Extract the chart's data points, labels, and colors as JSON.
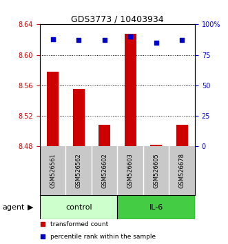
{
  "title": "GDS3773 / 10403934",
  "samples": [
    "GSM526561",
    "GSM526562",
    "GSM526602",
    "GSM526603",
    "GSM526605",
    "GSM526678"
  ],
  "bar_values": [
    8.578,
    8.555,
    8.508,
    8.628,
    8.482,
    8.508
  ],
  "percentile_values": [
    88,
    87,
    87,
    90,
    85,
    87
  ],
  "bar_bottom": 8.48,
  "ylim": [
    8.48,
    8.64
  ],
  "yticks": [
    8.48,
    8.52,
    8.56,
    8.6,
    8.64
  ],
  "right_ytick_values": [
    0,
    25,
    50,
    75,
    100
  ],
  "right_ytick_labels": [
    "0",
    "25",
    "50",
    "75",
    "100%"
  ],
  "right_ylim": [
    0,
    100
  ],
  "bar_color": "#cc0000",
  "dot_color": "#0000cc",
  "groups": [
    {
      "label": "control",
      "start": 0,
      "end": 2,
      "color": "#ccffcc"
    },
    {
      "label": "IL-6",
      "start": 3,
      "end": 5,
      "color": "#44cc44"
    }
  ],
  "agent_label": "agent",
  "legend_items": [
    {
      "color": "#cc0000",
      "label": "transformed count"
    },
    {
      "color": "#0000cc",
      "label": "percentile rank within the sample"
    }
  ],
  "background_color": "#ffffff",
  "sample_label_area_color": "#c8c8c8",
  "divider_color": "#ffffff"
}
